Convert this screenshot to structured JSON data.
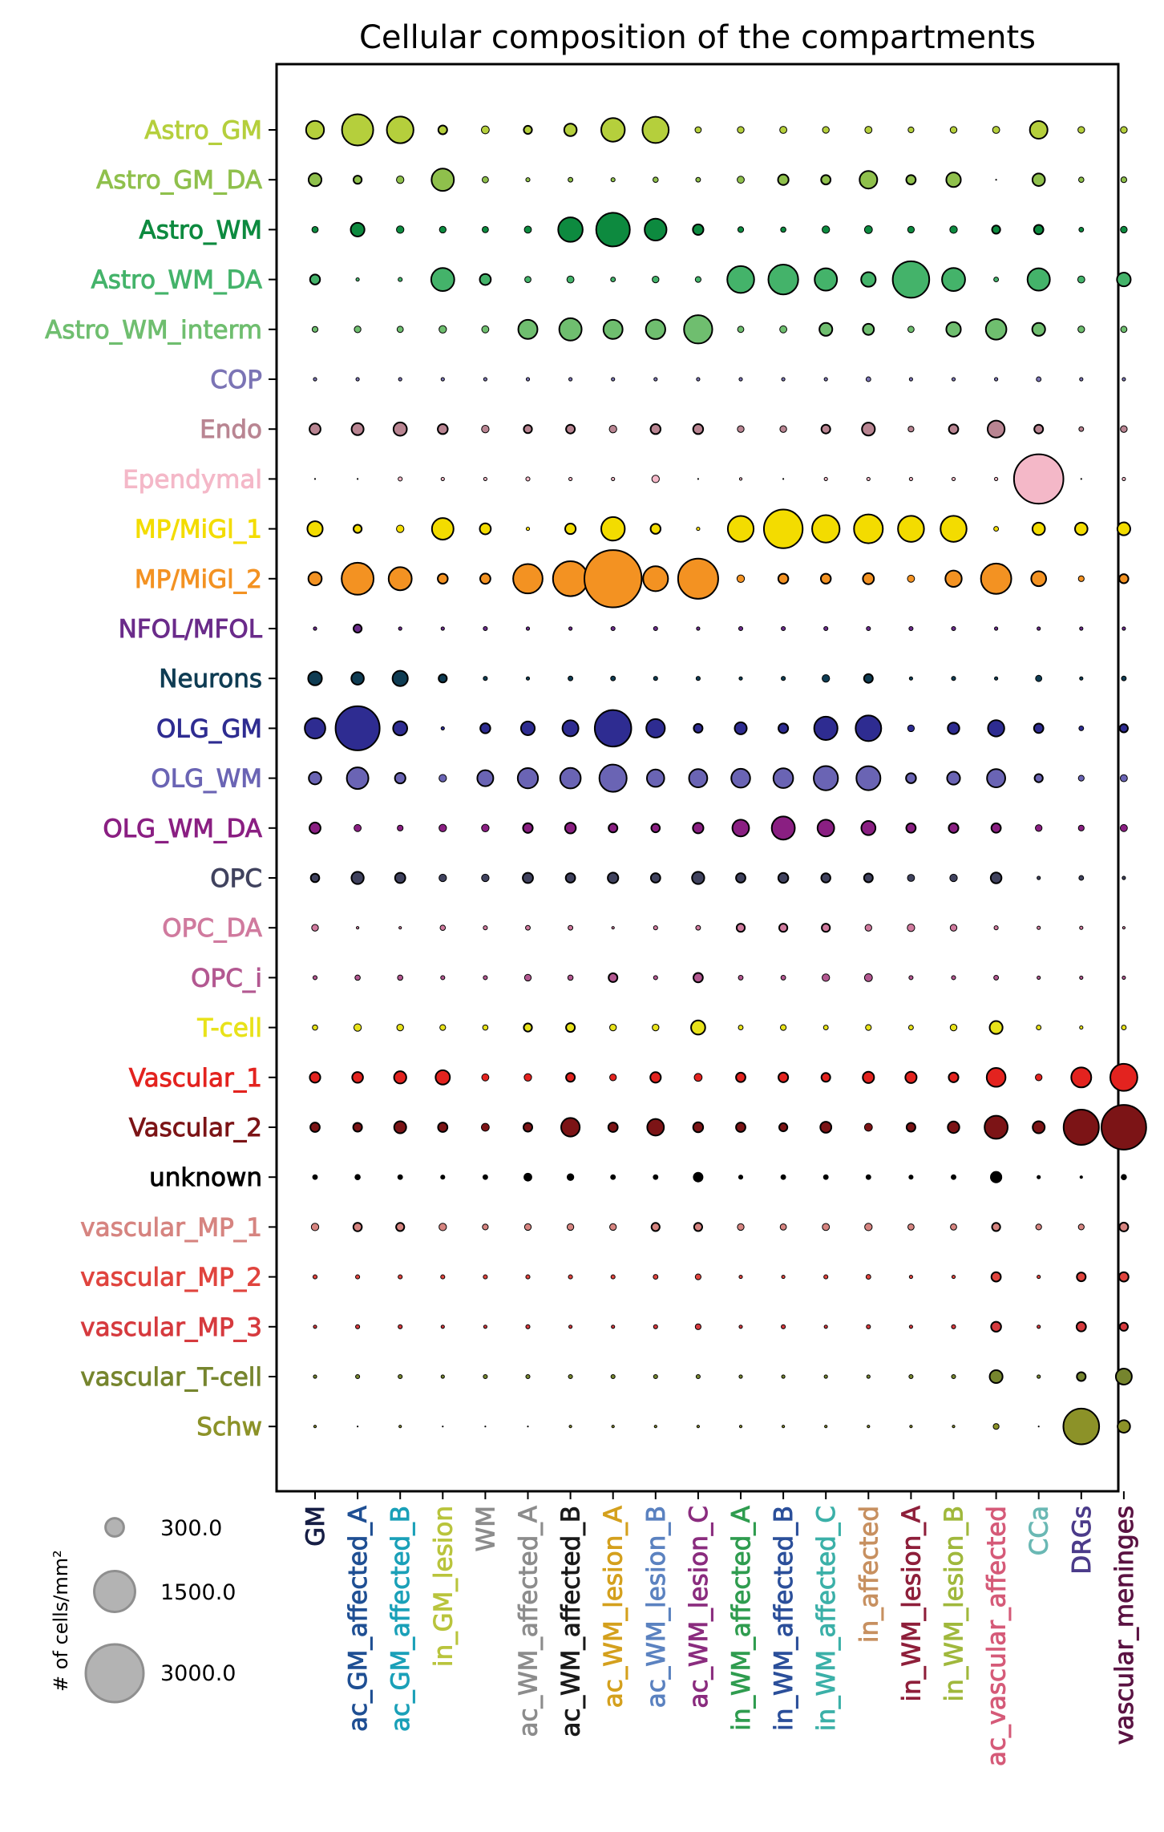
{
  "chart_data": {
    "type": "scatter",
    "title": "Cellular composition of the compartments",
    "rows": [
      {
        "label": "Astro_GM",
        "color": "#b5cf3c"
      },
      {
        "label": "Astro_GM_DA",
        "color": "#8fc04c"
      },
      {
        "label": "Astro_WM",
        "color": "#0d8a3f"
      },
      {
        "label": "Astro_WM_DA",
        "color": "#44b36a"
      },
      {
        "label": "Astro_WM_interm",
        "color": "#6fbe6f"
      },
      {
        "label": "COP",
        "color": "#7b74b5"
      },
      {
        "label": "Endo",
        "color": "#b98592"
      },
      {
        "label": "Ependymal",
        "color": "#f4b8c8"
      },
      {
        "label": "MP/MiGl_1",
        "color": "#f3dc00"
      },
      {
        "label": "MP/MiGl_2",
        "color": "#f39222"
      },
      {
        "label": "NFOL/MFOL",
        "color": "#6a2b8a"
      },
      {
        "label": "Neurons",
        "color": "#0f3c53"
      },
      {
        "label": "OLG_GM",
        "color": "#2e2c91"
      },
      {
        "label": "OLG_WM",
        "color": "#6a64b4"
      },
      {
        "label": "OLG_WM_DA",
        "color": "#8a1f82"
      },
      {
        "label": "OPC",
        "color": "#40425e"
      },
      {
        "label": "OPC_DA",
        "color": "#d07a9e"
      },
      {
        "label": "OPC_i",
        "color": "#b35891"
      },
      {
        "label": "T-cell",
        "color": "#e8e21a"
      },
      {
        "label": "Vascular_1",
        "color": "#e3231f"
      },
      {
        "label": "Vascular_2",
        "color": "#7c1416"
      },
      {
        "label": "unknown",
        "color": "#000000"
      },
      {
        "label": "vascular_MP_1",
        "color": "#d68480"
      },
      {
        "label": "vascular_MP_2",
        "color": "#e0443e"
      },
      {
        "label": "vascular_MP_3",
        "color": "#d63a3e"
      },
      {
        "label": "vascular_T-cell",
        "color": "#76852e"
      },
      {
        "label": "Schw",
        "color": "#8c9228"
      }
    ],
    "columns": [
      {
        "label": "GM",
        "color": "#161e45"
      },
      {
        "label": "ac_GM_affected_A",
        "color": "#1f4f93"
      },
      {
        "label": "ac_GM_affected_B",
        "color": "#1aa0b8"
      },
      {
        "label": "in_GM_lesion",
        "color": "#b9c43c"
      },
      {
        "label": "WM",
        "color": "#8c8c8c"
      },
      {
        "label": "ac_WM_affected_A",
        "color": "#8c8c8c"
      },
      {
        "label": "ac_WM_affected_B",
        "color": "#1a1a1a"
      },
      {
        "label": "ac_WM_lesion_A",
        "color": "#d4a01d"
      },
      {
        "label": "ac_WM_lesion_B",
        "color": "#5b82c0"
      },
      {
        "label": "ac_WM_lesion_C",
        "color": "#8a2c7e"
      },
      {
        "label": "in_WM_affected_A",
        "color": "#2f9c4f"
      },
      {
        "label": "in_WM_affected_B",
        "color": "#2b4f9a"
      },
      {
        "label": "in_WM_affected_C",
        "color": "#3bb0a8"
      },
      {
        "label": "in_affected",
        "color": "#c79060"
      },
      {
        "label": "in_WM_lesion_A",
        "color": "#8e1f3a"
      },
      {
        "label": "in_WM_lesion_B",
        "color": "#a0b83c"
      },
      {
        "label": "ac_vascular_affected",
        "color": "#d55a78"
      },
      {
        "label": "CCa",
        "color": "#6ab8b4"
      },
      {
        "label": "DRGs",
        "color": "#4b3b8a"
      },
      {
        "label": "vascular_meninges",
        "color": "#5a1242"
      }
    ],
    "values": [
      [
        290,
        880,
        640,
        70,
        55,
        60,
        140,
        500,
        620,
        35,
        40,
        45,
        40,
        45,
        30,
        40,
        45,
        280,
        40,
        40
      ],
      [
        150,
        60,
        50,
        450,
        35,
        15,
        20,
        15,
        25,
        20,
        45,
        100,
        80,
        280,
        80,
        190,
        0,
        140,
        25,
        30
      ],
      [
        35,
        170,
        50,
        40,
        35,
        45,
        540,
        1020,
        430,
        100,
        30,
        25,
        50,
        55,
        40,
        50,
        60,
        80,
        20,
        40
      ],
      [
        90,
        10,
        15,
        480,
        110,
        35,
        45,
        20,
        40,
        30,
        650,
        800,
        450,
        190,
        1200,
        480,
        20,
        450,
        45,
        170
      ],
      [
        30,
        40,
        35,
        50,
        45,
        330,
        450,
        330,
        340,
        720,
        35,
        45,
        150,
        110,
        35,
        190,
        380,
        150,
        40,
        35
      ],
      [
        10,
        10,
        10,
        10,
        10,
        10,
        10,
        10,
        10,
        10,
        10,
        10,
        10,
        20,
        10,
        10,
        10,
        20,
        10,
        10
      ],
      [
        110,
        130,
        160,
        90,
        50,
        60,
        70,
        50,
        90,
        90,
        40,
        40,
        70,
        150,
        30,
        80,
        260,
        70,
        20,
        40
      ],
      [
        0,
        0,
        15,
        10,
        10,
        15,
        10,
        10,
        50,
        0,
        5,
        0,
        10,
        10,
        10,
        10,
        10,
        2200,
        0,
        10
      ],
      [
        210,
        60,
        50,
        420,
        110,
        10,
        100,
        500,
        90,
        10,
        600,
        1350,
        680,
        750,
        610,
        610,
        20,
        140,
        140,
        150
      ],
      [
        160,
        920,
        480,
        90,
        95,
        780,
        1100,
        2950,
        560,
        1450,
        50,
        90,
        90,
        110,
        45,
        240,
        830,
        200,
        30,
        75
      ],
      [
        10,
        60,
        10,
        10,
        15,
        10,
        10,
        15,
        15,
        10,
        15,
        15,
        15,
        15,
        15,
        15,
        10,
        10,
        10,
        10
      ],
      [
        170,
        140,
        210,
        60,
        15,
        10,
        20,
        20,
        15,
        15,
        10,
        15,
        50,
        70,
        10,
        15,
        10,
        35,
        10,
        20
      ],
      [
        380,
        1750,
        180,
        10,
        90,
        170,
        230,
        1200,
        310,
        70,
        130,
        85,
        490,
        590,
        40,
        120,
        240,
        80,
        20,
        60
      ],
      [
        140,
        420,
        100,
        50,
        230,
        370,
        380,
        670,
        270,
        300,
        320,
        350,
        530,
        520,
        90,
        150,
        300,
        60,
        30,
        45
      ],
      [
        110,
        45,
        30,
        50,
        50,
        85,
        105,
        70,
        65,
        100,
        250,
        480,
        250,
        180,
        80,
        85,
        80,
        40,
        30,
        45
      ],
      [
        65,
        135,
        95,
        50,
        50,
        95,
        80,
        100,
        80,
        135,
        80,
        90,
        75,
        70,
        45,
        50,
        105,
        10,
        20,
        10
      ],
      [
        40,
        5,
        5,
        25,
        15,
        20,
        20,
        5,
        15,
        20,
        60,
        60,
        60,
        40,
        50,
        40,
        15,
        10,
        10,
        5
      ],
      [
        15,
        25,
        25,
        15,
        15,
        40,
        25,
        70,
        15,
        80,
        20,
        20,
        50,
        55,
        15,
        15,
        20,
        10,
        10,
        10
      ],
      [
        25,
        50,
        40,
        30,
        25,
        60,
        70,
        40,
        40,
        180,
        20,
        30,
        20,
        30,
        20,
        40,
        150,
        20,
        10,
        20
      ],
      [
        100,
        105,
        135,
        185,
        45,
        50,
        70,
        40,
        100,
        55,
        80,
        85,
        70,
        115,
        115,
        85,
        320,
        40,
        360,
        660
      ],
      [
        80,
        70,
        130,
        80,
        55,
        70,
        310,
        80,
        250,
        90,
        80,
        60,
        110,
        55,
        70,
        120,
        480,
        130,
        1120,
        1800
      ],
      [
        20,
        25,
        20,
        15,
        20,
        55,
        40,
        20,
        20,
        70,
        15,
        20,
        20,
        20,
        15,
        20,
        100,
        10,
        5,
        25
      ],
      [
        50,
        65,
        60,
        50,
        30,
        40,
        40,
        40,
        60,
        60,
        40,
        35,
        45,
        50,
        35,
        35,
        60,
        30,
        30,
        70
      ],
      [
        15,
        15,
        15,
        15,
        15,
        15,
        15,
        15,
        20,
        30,
        10,
        10,
        15,
        20,
        10,
        10,
        80,
        10,
        70,
        80
      ],
      [
        10,
        15,
        15,
        10,
        10,
        15,
        10,
        10,
        15,
        30,
        10,
        15,
        10,
        15,
        10,
        15,
        90,
        10,
        80,
        60
      ],
      [
        10,
        15,
        15,
        10,
        15,
        15,
        15,
        15,
        15,
        15,
        10,
        10,
        10,
        10,
        15,
        15,
        150,
        10,
        70,
        230
      ],
      [
        5,
        0,
        5,
        0,
        0,
        0,
        5,
        5,
        5,
        5,
        5,
        5,
        5,
        5,
        5,
        5,
        30,
        0,
        1150,
        140
      ]
    ],
    "legend": {
      "title": "# of cells/mm²",
      "entries": [
        {
          "label": "300.0",
          "value": 300
        },
        {
          "label": "1500.0",
          "value": 1500
        },
        {
          "label": "3000.0",
          "value": 3000
        }
      ]
    },
    "grid": false
  }
}
